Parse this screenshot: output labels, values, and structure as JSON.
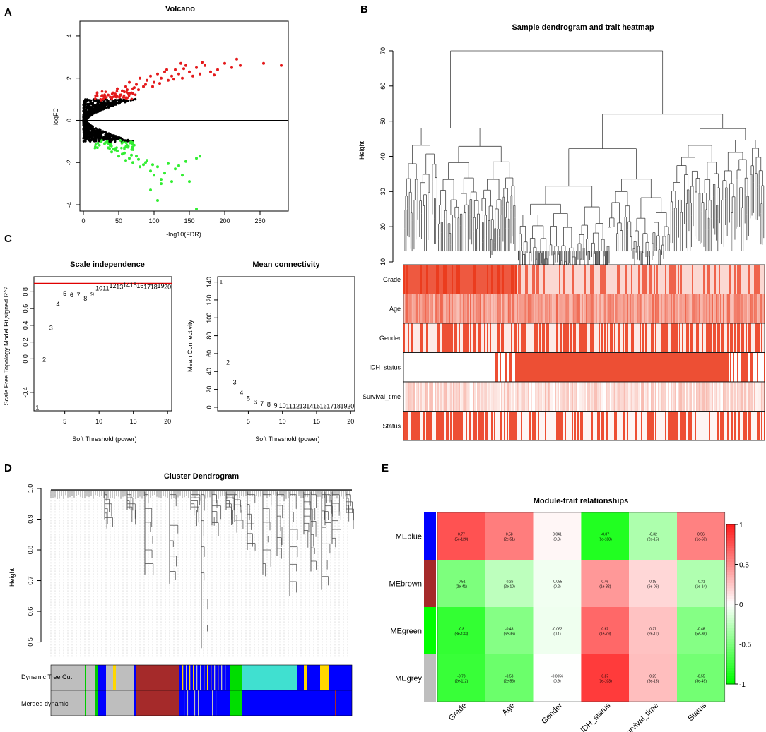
{
  "panels": {
    "A": {
      "letter": "A"
    },
    "B": {
      "letter": "B"
    },
    "C": {
      "letter": "C"
    },
    "D": {
      "letter": "D"
    },
    "E": {
      "letter": "E"
    }
  },
  "chart_data": [
    {
      "id": "volcano",
      "type": "scatter",
      "title": "Volcano",
      "xlabel": "-log10(FDR)",
      "ylabel": "logFC",
      "xlim": [
        -5,
        290
      ],
      "ylim": [
        -4.3,
        4.7
      ],
      "xticks": [
        "0",
        "50",
        "100",
        "150",
        "200",
        "250"
      ],
      "yticks": [
        "-4",
        "-2",
        "0",
        "2",
        "4"
      ],
      "series": [
        {
          "name": "up",
          "color": "#e41a1c",
          "points": [
            [
              30,
              1.1
            ],
            [
              35,
              1.2
            ],
            [
              42,
              1.3
            ],
            [
              48,
              1.5
            ],
            [
              55,
              1.4
            ],
            [
              60,
              1.6
            ],
            [
              65,
              1.8
            ],
            [
              70,
              1.5
            ],
            [
              75,
              1.7
            ],
            [
              80,
              2.0
            ],
            [
              85,
              1.6
            ],
            [
              90,
              1.9
            ],
            [
              95,
              2.1
            ],
            [
              100,
              1.8
            ],
            [
              105,
              2.2
            ],
            [
              110,
              2.0
            ],
            [
              115,
              2.3
            ],
            [
              120,
              1.9
            ],
            [
              125,
              2.1
            ],
            [
              130,
              2.4
            ],
            [
              135,
              2.2
            ],
            [
              140,
              2.0
            ],
            [
              145,
              2.6
            ],
            [
              150,
              2.3
            ],
            [
              160,
              2.5
            ],
            [
              165,
              2.2
            ],
            [
              172,
              2.6
            ],
            [
              180,
              2.3
            ],
            [
              190,
              2.4
            ],
            [
              200,
              2.7
            ],
            [
              210,
              2.5
            ],
            [
              217,
              2.9
            ],
            [
              222,
              2.6
            ],
            [
              255,
              2.7
            ],
            [
              280,
              2.6
            ],
            [
              28,
              1.0
            ],
            [
              38,
              1.1
            ],
            [
              45,
              1.25
            ],
            [
              52,
              1.2
            ],
            [
              58,
              1.35
            ],
            [
              62,
              1.45
            ],
            [
              68,
              1.3
            ],
            [
              72,
              1.55
            ],
            [
              78,
              1.45
            ],
            [
              88,
              1.7
            ],
            [
              98,
              1.6
            ],
            [
              108,
              1.75
            ],
            [
              118,
              2.4
            ],
            [
              128,
              1.95
            ],
            [
              138,
              2.7
            ],
            [
              142,
              2.45
            ],
            [
              155,
              2.1
            ],
            [
              168,
              2.75
            ],
            [
              185,
              2.15
            ]
          ]
        },
        {
          "name": "down",
          "color": "#33ee33",
          "points": [
            [
              30,
              -1.1
            ],
            [
              35,
              -1.3
            ],
            [
              40,
              -1.5
            ],
            [
              45,
              -1.4
            ],
            [
              50,
              -1.7
            ],
            [
              55,
              -1.6
            ],
            [
              60,
              -1.9
            ],
            [
              65,
              -1.8
            ],
            [
              70,
              -2.0
            ],
            [
              75,
              -1.7
            ],
            [
              80,
              -2.2
            ],
            [
              85,
              -2.1
            ],
            [
              90,
              -1.9
            ],
            [
              95,
              -2.4
            ],
            [
              100,
              -2.6
            ],
            [
              105,
              -2.2
            ],
            [
              110,
              -2.8
            ],
            [
              115,
              -2.5
            ],
            [
              125,
              -2.9
            ],
            [
              130,
              -2.3
            ],
            [
              140,
              -2.6
            ],
            [
              150,
              -2.9
            ],
            [
              160,
              -1.8
            ],
            [
              165,
              -1.7
            ],
            [
              110,
              -3.0
            ],
            [
              95,
              -3.3
            ],
            [
              105,
              -3.8
            ],
            [
              160,
              -4.2
            ],
            [
              38,
              -1.2
            ],
            [
              48,
              -1.45
            ],
            [
              58,
              -1.55
            ],
            [
              68,
              -1.65
            ],
            [
              78,
              -1.85
            ],
            [
              88,
              -2.0
            ],
            [
              98,
              -2.1
            ],
            [
              120,
              -2.05
            ],
            [
              135,
              -2.15
            ],
            [
              145,
              -1.95
            ]
          ]
        }
      ]
    },
    {
      "id": "sample_dendrogram_trait_heatmap",
      "type": "heatmap",
      "title": "Sample dendrogram and trait heatmap",
      "ylabel": "Height",
      "ylim": [
        10,
        72
      ],
      "yticks": [
        "10",
        "20",
        "30",
        "40",
        "50",
        "60",
        "70"
      ],
      "trait_rows": [
        "Grade",
        "Age",
        "Gender",
        "IDH_status",
        "Survival_time",
        "Status"
      ]
    },
    {
      "id": "scale_independence",
      "type": "scatter",
      "title": "Scale independence",
      "xlabel": "Soft Threshold (power)",
      "ylabel": "Scale Free Topology Model Fit,signed R^2",
      "xlim": [
        0.5,
        20.6
      ],
      "ylim": [
        -0.62,
        0.98
      ],
      "xticks": [
        "5",
        "10",
        "15",
        "20"
      ],
      "yticks": [
        "-0.4",
        "0.0",
        "0.2",
        "0.4",
        "0.6",
        "0.8"
      ],
      "hline": 0.9,
      "labels": [
        "1",
        "2",
        "3",
        "4",
        "5",
        "6",
        "7",
        "8",
        "9",
        "10",
        "11",
        "12",
        "13",
        "14",
        "15",
        "16",
        "17",
        "18",
        "19",
        "20"
      ],
      "values": [
        -0.58,
        -0.01,
        0.37,
        0.65,
        0.78,
        0.76,
        0.76,
        0.72,
        0.77,
        0.84,
        0.84,
        0.87,
        0.86,
        0.88,
        0.88,
        0.87,
        0.86,
        0.86,
        0.87,
        0.86
      ]
    },
    {
      "id": "mean_connectivity",
      "type": "scatter",
      "title": "Mean connectivity",
      "xlabel": "Soft Threshold (power)",
      "ylabel": "Mean Connectivity",
      "xlim": [
        0.5,
        20.6
      ],
      "ylim": [
        -4,
        146
      ],
      "xticks": [
        "5",
        "10",
        "15",
        "20"
      ],
      "yticks": [
        "0",
        "20",
        "40",
        "60",
        "80",
        "100",
        "120",
        "140"
      ],
      "labels": [
        "1",
        "2",
        "3",
        "4",
        "5",
        "6",
        "7",
        "8",
        "9",
        "10",
        "11",
        "12",
        "13",
        "14",
        "15",
        "16",
        "17",
        "18",
        "19",
        "20"
      ],
      "values": [
        140,
        50,
        28,
        16,
        10,
        6,
        4,
        3,
        2,
        1.5,
        1,
        1,
        1,
        1,
        1,
        1,
        1,
        1,
        1,
        1
      ]
    },
    {
      "id": "cluster_dendrogram",
      "type": "line",
      "title": "Cluster Dendrogram",
      "ylabel": "Height",
      "ylim": [
        0.43,
        1.0
      ],
      "yticks": [
        "0.5",
        "0.6",
        "0.7",
        "0.8",
        "0.9",
        "1.0"
      ],
      "color_rows": [
        "Dynamic Tree Cut",
        "Merged dynamic"
      ]
    },
    {
      "id": "module_trait_relationships",
      "type": "heatmap",
      "title": "Module-trait relationships",
      "rows": [
        "MEblue",
        "MEbrown",
        "MEgreen",
        "MEgrey"
      ],
      "row_colors": [
        "#0000ff",
        "#a52a2a",
        "#00ff00",
        "#bebebe"
      ],
      "columns": [
        "Grade",
        "Age",
        "Gender",
        "IDH_status",
        "Survival_time",
        "Status"
      ],
      "values": [
        [
          0.77,
          0.58,
          0.041,
          -0.87,
          -0.32,
          0.56
        ],
        [
          -0.51,
          -0.26,
          -0.055,
          0.46,
          0.18,
          -0.31
        ],
        [
          -0.8,
          -0.48,
          -0.062,
          0.67,
          0.27,
          -0.48
        ],
        [
          -0.78,
          -0.58,
          -0.0056,
          0.87,
          0.29,
          -0.55
        ]
      ],
      "correlations": [
        [
          "0.77",
          "0.58",
          "0.041",
          "-0.87",
          "-0.32",
          "0.56"
        ],
        [
          "-0.51",
          "-0.26",
          "-0.055",
          "0.46",
          "0.18",
          "-0.31"
        ],
        [
          "-0.8",
          "-0.48",
          "-0.062",
          "0.67",
          "0.27",
          "-0.48"
        ],
        [
          "-0.78",
          "-0.58",
          "-0.0056",
          "0.87",
          "0.29",
          "-0.55"
        ]
      ],
      "pvalues": [
        [
          "(5e-120)",
          "(2e-51)",
          "(0.3)",
          "(1e-188)",
          "(2e-15)",
          "(1e-50)"
        ],
        [
          "(2e-41)",
          "(2e-10)",
          "(0.2)",
          "(1e-32)",
          "(6e-06)",
          "(1e-14)"
        ],
        [
          "(3e-133)",
          "(6e-36)",
          "(0.1)",
          "(1e-79)",
          "(2e-11)",
          "(5e-36)"
        ],
        [
          "(2e-112)",
          "(2e-56)",
          "(0.9)",
          "(1e-103)",
          "(8e-13)",
          "(3e-49)"
        ]
      ],
      "legend_ticks": [
        "1",
        "0.5",
        "0",
        "-0.5",
        "-1"
      ],
      "legend_range": [
        -1,
        1
      ]
    }
  ]
}
